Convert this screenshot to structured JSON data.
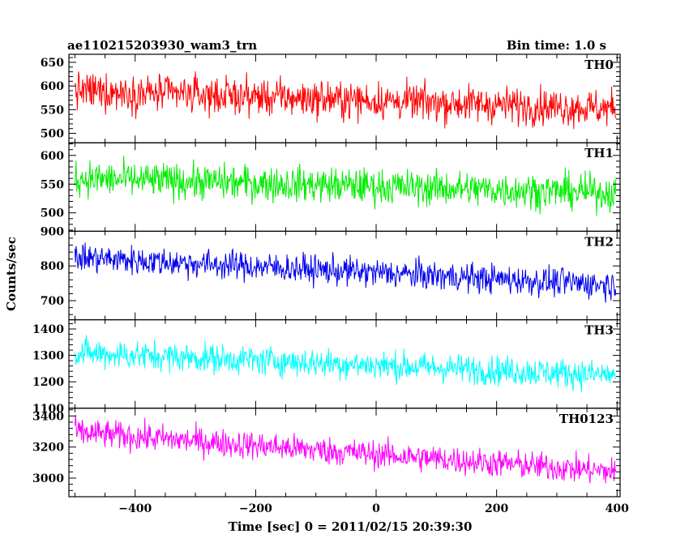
{
  "header": {
    "title": "ae110215203930_wam3_trn",
    "bin_time": "Bin time: 1.0 s"
  },
  "chart_data": {
    "type": "line",
    "title": "ae110215203930_wam3_trn",
    "subtitle": "Bin time: 1.0 s",
    "xlabel": "Time [sec] 0 = 2011/02/15 20:39:30",
    "ylabel": "Counts/sec",
    "xlim": [
      -510,
      405
    ],
    "data_x_range": [
      -500,
      398
    ],
    "x_ticks": [
      -400,
      -200,
      0,
      200,
      400
    ],
    "grid": false,
    "legend": "none",
    "panels": [
      {
        "name": "TH0",
        "color": "#ff0000",
        "ylim": [
          480,
          667
        ],
        "y_ticks": [
          500,
          550,
          600,
          650
        ],
        "trend_start": 590,
        "trend_end": 552,
        "noise_amplitude": 28
      },
      {
        "name": "TH1",
        "color": "#00ee00",
        "ylim": [
          468,
          622
        ],
        "y_ticks": [
          500,
          550,
          600
        ],
        "trend_start": 560,
        "trend_end": 535,
        "noise_amplitude": 22
      },
      {
        "name": "TH2",
        "color": "#0000ee",
        "ylim": [
          645,
          900
        ],
        "y_ticks": [
          700,
          800,
          900
        ],
        "trend_start": 825,
        "trend_end": 745,
        "noise_amplitude": 30
      },
      {
        "name": "TH3",
        "color": "#00ffff",
        "ylim": [
          1100,
          1435
        ],
        "y_ticks": [
          1100,
          1200,
          1300,
          1400
        ],
        "trend_start": 1310,
        "trend_end": 1225,
        "noise_amplitude": 40
      },
      {
        "name": "TH0123",
        "color": "#ff00ff",
        "ylim": [
          2880,
          3450
        ],
        "y_ticks": [
          3000,
          3200,
          3400
        ],
        "trend_start": 3295,
        "trend_end": 3040,
        "noise_amplitude": 65
      }
    ]
  }
}
